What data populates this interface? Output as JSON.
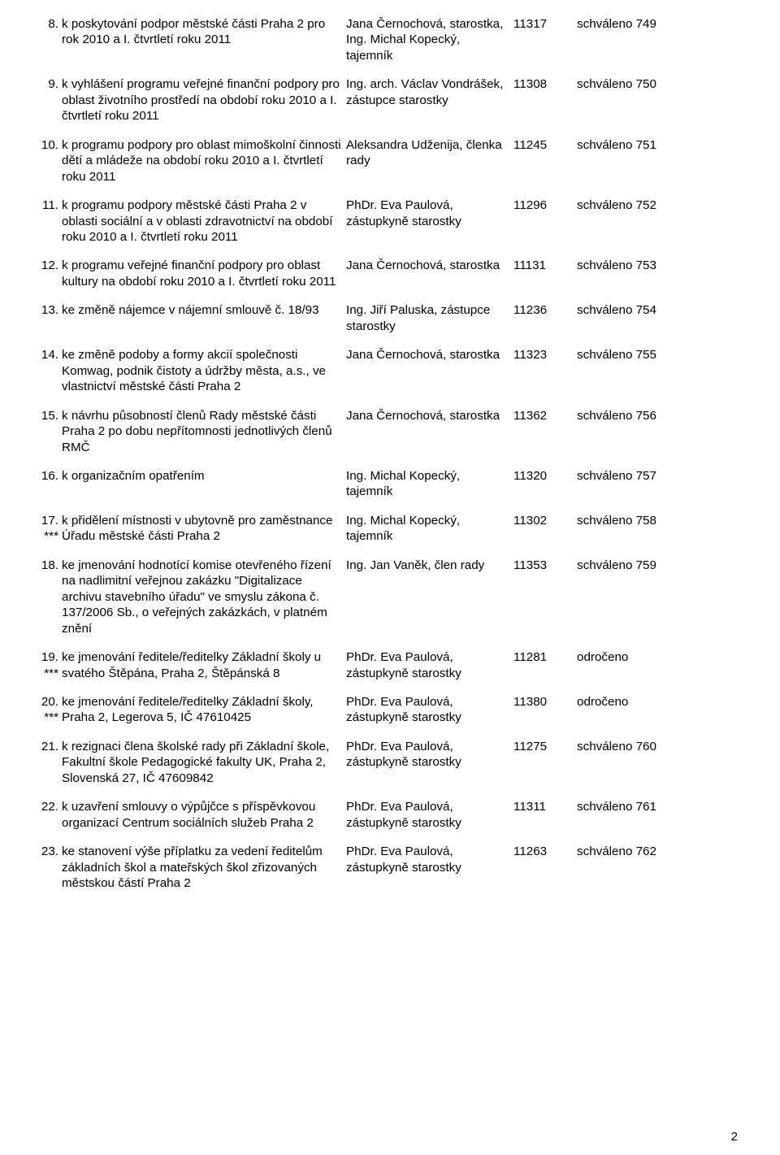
{
  "page_number": "2",
  "rows": [
    {
      "num": "8.",
      "starred": false,
      "desc": "k poskytování podpor městské části Praha 2 pro rok 2010 a I. čtvrtletí roku 2011",
      "presenter": "Jana Černochová, starostka, Ing. Michal Kopecký, tajemník",
      "id": "11317",
      "result": "schváleno 749"
    },
    {
      "num": "9.",
      "starred": false,
      "desc": "k vyhlášení programu veřejné finanční podpory pro oblast životního prostředí na období roku 2010 a I. čtvrtletí roku 2011",
      "presenter": "Ing. arch. Václav Vondrášek, zástupce starostky",
      "id": "11308",
      "result": "schváleno 750"
    },
    {
      "num": "10.",
      "starred": false,
      "desc": "k programu podpory pro oblast mimoškolní činnosti dětí a mládeže na období roku 2010 a I. čtvrtletí roku 2011",
      "presenter": "Aleksandra Udženija, členka rady",
      "id": "11245",
      "result": "schváleno 751"
    },
    {
      "num": "11.",
      "starred": false,
      "desc": "k programu podpory městské části Praha 2 v oblasti sociální a v oblasti zdravotnictví na období roku 2010 a I. čtvrtletí roku 2011",
      "presenter": "PhDr. Eva Paulová, zástupkyně starostky",
      "id": "11296",
      "result": "schváleno 752"
    },
    {
      "num": "12.",
      "starred": false,
      "desc": "k programu veřejné finanční podpory pro oblast kultury na období roku 2010 a I. čtvrtletí roku 2011",
      "presenter": "Jana Černochová, starostka",
      "id": "11131",
      "result": "schváleno 753"
    },
    {
      "num": "13.",
      "starred": false,
      "desc": "ke změně nájemce v nájemní smlouvě č. 18/93",
      "presenter": "Ing. Jiří Paluska, zástupce starostky",
      "id": "11236",
      "result": "schváleno 754"
    },
    {
      "num": "14.",
      "starred": false,
      "desc": "ke změně podoby a formy akcií společnosti Komwag, podnik čistoty a údržby města, a.s., ve vlastnictví městské části Praha 2",
      "presenter": "Jana Černochová, starostka",
      "id": "11323",
      "result": "schváleno 755"
    },
    {
      "num": "15.",
      "starred": false,
      "desc": "k návrhu působností členů Rady městské části Praha 2 po dobu nepřítomnosti jednotlivých členů RMČ",
      "presenter": "Jana Černochová, starostka",
      "id": "11362",
      "result": "schváleno 756"
    },
    {
      "num": "16.",
      "starred": false,
      "desc": "k organizačním opatřením",
      "presenter": "Ing. Michal Kopecký, tajemník",
      "id": "11320",
      "result": "schváleno 757"
    },
    {
      "num": "17.",
      "starred": true,
      "desc": "k přidělení místnosti v ubytovně pro zaměstnance Úřadu městské části Praha 2",
      "presenter": "Ing. Michal Kopecký, tajemník",
      "id": "11302",
      "result": "schváleno 758"
    },
    {
      "num": "18.",
      "starred": false,
      "desc": "ke jmenování hodnotící komise otevřeného řízení na nadlimitní veřejnou zakázku \"Digitalizace archivu stavebního úřadu\" ve smyslu zákona č. 137/2006 Sb., o veřejných zakázkách, v platném znění",
      "presenter": "Ing. Jan Vaněk, člen rady",
      "id": "11353",
      "result": "schváleno 759"
    },
    {
      "num": "19.",
      "starred": true,
      "desc": "ke jmenování ředitele/ředitelky Základní školy u svatého Štěpána, Praha 2, Štěpánská 8",
      "presenter": "PhDr. Eva Paulová, zástupkyně starostky",
      "id": "11281",
      "result": "odročeno"
    },
    {
      "num": "20.",
      "starred": true,
      "desc": "ke jmenování ředitele/ředitelky Základní školy, Praha 2, Legerova 5, IČ 47610425",
      "presenter": "PhDr. Eva Paulová, zástupkyně starostky",
      "id": "11380",
      "result": "odročeno"
    },
    {
      "num": "21.",
      "starred": false,
      "desc": "k rezignaci člena školské rady při Základní škole, Fakultní škole Pedagogické fakulty UK, Praha 2, Slovenská 27, IČ 47609842",
      "presenter": "PhDr. Eva Paulová, zástupkyně starostky",
      "id": "11275",
      "result": "schváleno 760"
    },
    {
      "num": "22.",
      "starred": false,
      "desc": "k uzavření smlouvy o výpůjčce s příspěvkovou organizací Centrum sociálních služeb Praha 2",
      "presenter": "PhDr. Eva Paulová, zástupkyně starostky",
      "id": "11311",
      "result": "schváleno 761"
    },
    {
      "num": "23.",
      "starred": false,
      "desc": "ke stanovení výše příplatku za vedení ředitelům základních škol a mateřských škol zřizovaných městskou částí Praha 2",
      "presenter": "PhDr. Eva Paulová, zástupkyně starostky",
      "id": "11263",
      "result": "schváleno 762"
    }
  ],
  "star_marker": "***"
}
